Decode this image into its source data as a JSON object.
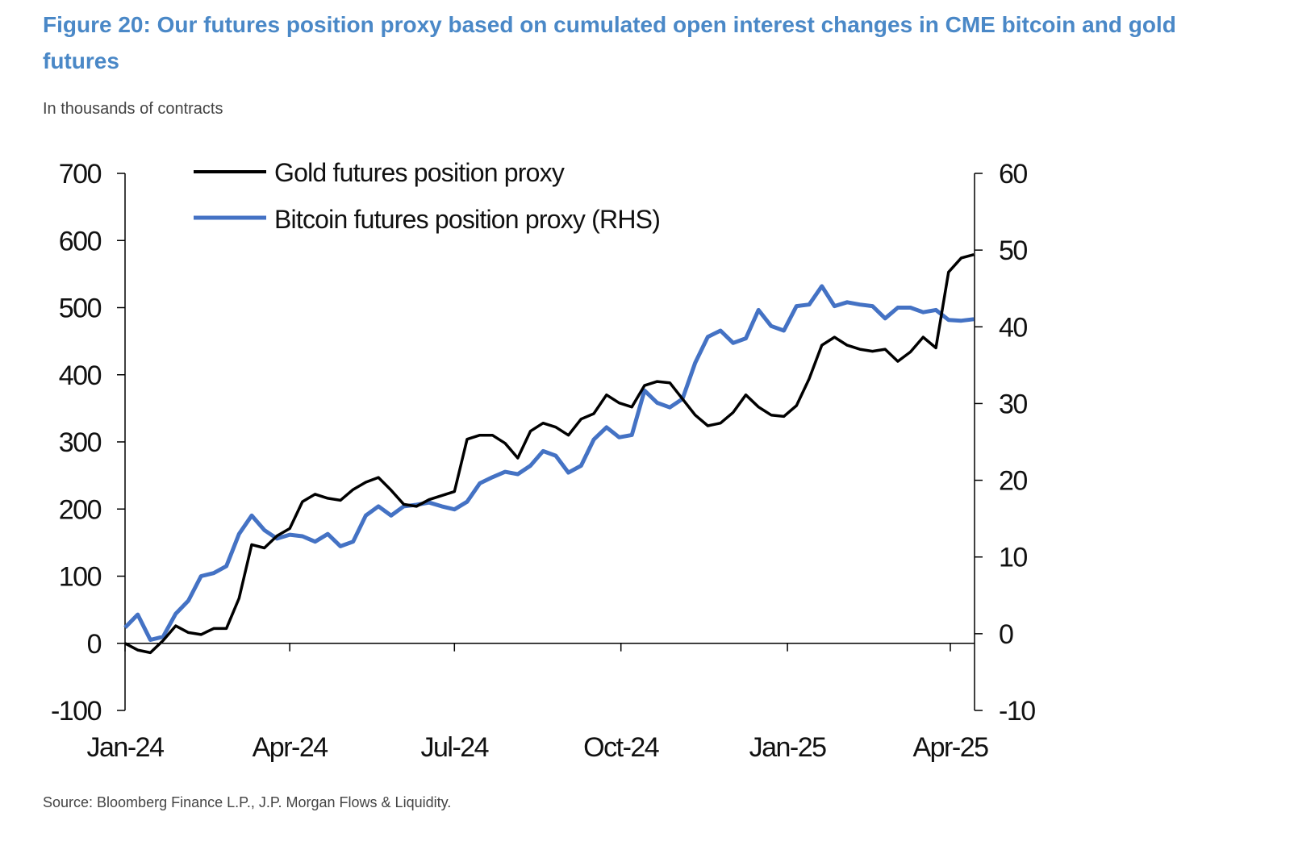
{
  "title": "Figure 20: Our futures position proxy based on cumulated open interest changes in CME bitcoin and gold futures",
  "subtitle": "In thousands of contracts",
  "source": "Source: Bloomberg Finance L.P., J.P. Morgan Flows & Liquidity.",
  "chart_data": {
    "type": "line",
    "title": "Figure 20: Our futures position proxy based on cumulated open interest changes in CME bitcoin and gold futures",
    "ylabel": "In thousands of contracts",
    "x_ticks": [
      "Jan-24",
      "Apr-24",
      "Jul-24",
      "Oct-24",
      "Jan-25",
      "Apr-25"
    ],
    "x_tick_dates": [
      "2024-01-01",
      "2024-04-01",
      "2024-07-01",
      "2024-10-01",
      "2025-01-01",
      "2025-04-01"
    ],
    "xlim": [
      "2024-01-01",
      "2025-04-15"
    ],
    "ylim_left": [
      -100,
      700
    ],
    "yticks_left": [
      -100,
      0,
      100,
      200,
      300,
      400,
      500,
      600,
      700
    ],
    "ylim_right": [
      -10,
      60
    ],
    "yticks_right": [
      -10,
      0,
      10,
      20,
      30,
      40,
      50,
      60
    ],
    "grid": false,
    "legend_position": "top-left",
    "x": [
      "2024-01-01",
      "2024-01-08",
      "2024-01-15",
      "2024-01-22",
      "2024-01-29",
      "2024-02-05",
      "2024-02-12",
      "2024-02-19",
      "2024-02-26",
      "2024-03-04",
      "2024-03-11",
      "2024-03-18",
      "2024-03-25",
      "2024-04-01",
      "2024-04-08",
      "2024-04-15",
      "2024-04-22",
      "2024-04-29",
      "2024-05-06",
      "2024-05-13",
      "2024-05-20",
      "2024-05-27",
      "2024-06-03",
      "2024-06-10",
      "2024-06-17",
      "2024-06-24",
      "2024-07-01",
      "2024-07-08",
      "2024-07-15",
      "2024-07-22",
      "2024-07-29",
      "2024-08-05",
      "2024-08-12",
      "2024-08-19",
      "2024-08-26",
      "2024-09-02",
      "2024-09-09",
      "2024-09-16",
      "2024-09-23",
      "2024-09-30",
      "2024-10-07",
      "2024-10-14",
      "2024-10-21",
      "2024-10-28",
      "2024-11-04",
      "2024-11-11",
      "2024-11-18",
      "2024-11-25",
      "2024-12-02",
      "2024-12-09",
      "2024-12-16",
      "2024-12-23",
      "2024-12-30",
      "2025-01-06",
      "2025-01-13",
      "2025-01-20",
      "2025-01-27",
      "2025-02-03",
      "2025-02-10",
      "2025-02-17",
      "2025-02-24",
      "2025-03-03",
      "2025-03-10",
      "2025-03-17",
      "2025-03-24",
      "2025-03-31",
      "2025-04-07",
      "2025-04-14"
    ],
    "series": [
      {
        "name": "Gold futures position proxy",
        "axis": "left",
        "color": "#000000",
        "values": [
          0,
          -10,
          -14,
          4,
          26,
          16,
          13,
          22,
          22,
          67,
          147,
          142,
          160,
          171,
          211,
          222,
          216,
          213,
          229,
          240,
          247,
          228,
          207,
          204,
          214,
          220,
          226,
          304,
          310,
          310,
          298,
          276,
          316,
          328,
          322,
          310,
          334,
          342,
          370,
          358,
          352,
          384,
          390,
          388,
          364,
          340,
          324,
          328,
          344,
          370,
          352,
          340,
          338,
          354,
          394,
          444,
          456,
          444,
          438,
          435,
          438,
          420,
          434,
          456,
          440,
          553,
          574,
          579
        ]
      },
      {
        "name": "Bitcoin futures position proxy (RHS)",
        "axis": "right",
        "color": "#4472c4",
        "values": [
          0.8,
          2.5,
          -0.8,
          -0.4,
          2.6,
          4.3,
          7.5,
          7.9,
          8.8,
          13.0,
          15.4,
          13.5,
          12.4,
          12.9,
          12.7,
          12.0,
          13.0,
          11.4,
          12.0,
          15.4,
          16.6,
          15.4,
          16.6,
          16.8,
          17.1,
          16.6,
          16.2,
          17.2,
          19.6,
          20.4,
          21.1,
          20.8,
          21.9,
          23.8,
          23.2,
          21.0,
          21.9,
          25.3,
          26.9,
          25.6,
          25.9,
          31.7,
          30.1,
          29.5,
          30.6,
          35.3,
          38.7,
          39.5,
          37.9,
          38.5,
          42.2,
          40.1,
          39.5,
          42.7,
          42.9,
          45.3,
          42.7,
          43.2,
          42.9,
          42.7,
          41.1,
          42.5,
          42.5,
          41.9,
          42.2,
          40.9,
          40.8,
          41.0
        ]
      }
    ]
  }
}
